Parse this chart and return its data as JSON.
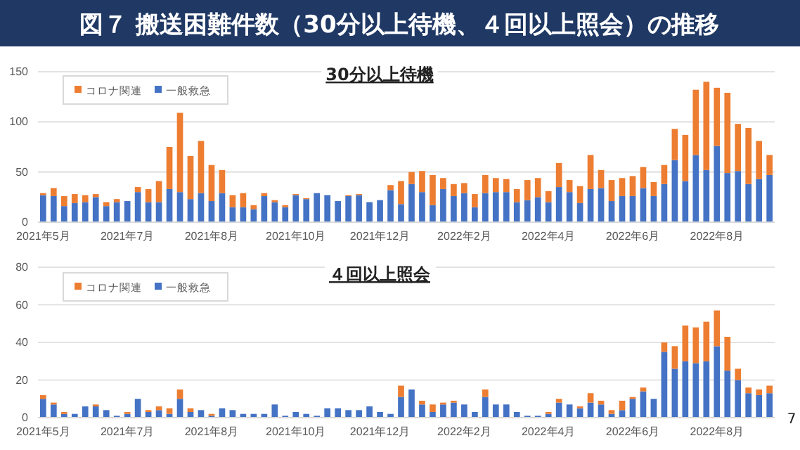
{
  "chart_data": [
    {
      "type": "bar",
      "title": "図７ 搬送困難件数（30分以上待機、４回以上照会）の推移",
      "subtitle": "30分以上待機",
      "stacked": true,
      "legend": "top left",
      "grid": "y",
      "categories": [
        "2021年5月",
        null,
        null,
        null,
        null,
        null,
        null,
        null,
        "2021年7月",
        null,
        null,
        null,
        null,
        null,
        null,
        null,
        "2021年8月",
        null,
        null,
        null,
        null,
        null,
        null,
        null,
        "2021年10月",
        null,
        null,
        null,
        null,
        null,
        null,
        null,
        "2021年12月",
        null,
        null,
        null,
        null,
        null,
        null,
        null,
        "2022年2月",
        null,
        null,
        null,
        null,
        null,
        null,
        null,
        "2022年4月",
        null,
        null,
        null,
        null,
        null,
        null,
        null,
        "2022年6月",
        null,
        null,
        null,
        null,
        null,
        null,
        null,
        "2022年8月",
        null,
        null,
        null,
        null,
        null
      ],
      "ylim": [
        0,
        150
      ],
      "yticks": [
        0,
        50,
        100,
        150
      ],
      "series": [
        {
          "name": "一般救急",
          "color": "#4472c4",
          "values": [
            27,
            26,
            16,
            19,
            20,
            25,
            16,
            20,
            21,
            30,
            20,
            20,
            33,
            30,
            23,
            29,
            21,
            29,
            15,
            15,
            13,
            26,
            20,
            15,
            27,
            23,
            29,
            27,
            21,
            26,
            27,
            20,
            22,
            32,
            18,
            38,
            30,
            17,
            33,
            26,
            29,
            15,
            29,
            30,
            30,
            20,
            22,
            25,
            20,
            35,
            30,
            19,
            33,
            34,
            21,
            26,
            26,
            34,
            26,
            38,
            62,
            41,
            67,
            52,
            76,
            49,
            51,
            38,
            43,
            47
          ]
        },
        {
          "name": "コロナ関連",
          "color": "#ed7d31",
          "values": [
            2,
            8,
            10,
            9,
            7,
            3,
            4,
            3,
            0,
            5,
            13,
            21,
            42,
            79,
            43,
            52,
            36,
            23,
            12,
            14,
            4,
            3,
            2,
            2,
            1,
            1,
            0,
            0,
            0,
            1,
            1,
            0,
            0,
            5,
            23,
            12,
            21,
            30,
            11,
            12,
            10,
            13,
            18,
            14,
            13,
            13,
            20,
            19,
            11,
            24,
            12,
            17,
            34,
            18,
            21,
            18,
            20,
            21,
            14,
            19,
            31,
            46,
            65,
            88,
            58,
            80,
            47,
            56,
            38,
            20
          ]
        }
      ]
    },
    {
      "type": "bar",
      "title": "４回以上照会",
      "stacked": true,
      "legend": "top left",
      "grid": "y",
      "categories": [
        "2021年5月",
        null,
        null,
        null,
        null,
        null,
        null,
        null,
        "2021年7月",
        null,
        null,
        null,
        null,
        null,
        null,
        null,
        "2021年8月",
        null,
        null,
        null,
        null,
        null,
        null,
        null,
        "2021年10月",
        null,
        null,
        null,
        null,
        null,
        null,
        null,
        "2021年12月",
        null,
        null,
        null,
        null,
        null,
        null,
        null,
        "2022年2月",
        null,
        null,
        null,
        null,
        null,
        null,
        null,
        "2022年4月",
        null,
        null,
        null,
        null,
        null,
        null,
        null,
        "2022年6月",
        null,
        null,
        null,
        null,
        null,
        null,
        null,
        "2022年8月",
        null,
        null,
        null,
        null,
        null
      ],
      "ylim": [
        0,
        80
      ],
      "yticks": [
        0,
        20,
        40,
        60,
        80
      ],
      "annotations": [
        "7"
      ],
      "series": [
        {
          "name": "一般救急",
          "color": "#4472c4",
          "values": [
            10,
            7,
            2,
            2,
            6,
            6,
            4,
            1,
            2,
            10,
            3,
            4,
            2,
            10,
            3,
            4,
            1,
            5,
            4,
            2,
            2,
            2,
            7,
            1,
            3,
            2,
            1,
            5,
            5,
            4,
            4,
            6,
            3,
            2,
            11,
            15,
            7,
            3,
            7,
            8,
            7,
            3,
            11,
            7,
            7,
            3,
            1,
            1,
            2,
            8,
            7,
            5,
            8,
            7,
            2,
            4,
            10,
            14,
            10,
            35,
            26,
            30,
            29,
            30,
            38,
            25,
            20,
            13,
            12,
            13
          ]
        },
        {
          "name": "コロナ関連",
          "color": "#ed7d31",
          "values": [
            2,
            1,
            1,
            0,
            0,
            1,
            0,
            0,
            1,
            0,
            1,
            2,
            3,
            5,
            2,
            0,
            1,
            0,
            0,
            0,
            0,
            0,
            0,
            0,
            0,
            0,
            0,
            0,
            0,
            0,
            0,
            0,
            0,
            0,
            6,
            0,
            2,
            4,
            1,
            1,
            0,
            0,
            4,
            0,
            0,
            0,
            0,
            0,
            1,
            2,
            0,
            1,
            5,
            2,
            2,
            5,
            1,
            2,
            0,
            5,
            12,
            19,
            19,
            21,
            19,
            18,
            6,
            3,
            3,
            4
          ]
        }
      ]
    }
  ]
}
